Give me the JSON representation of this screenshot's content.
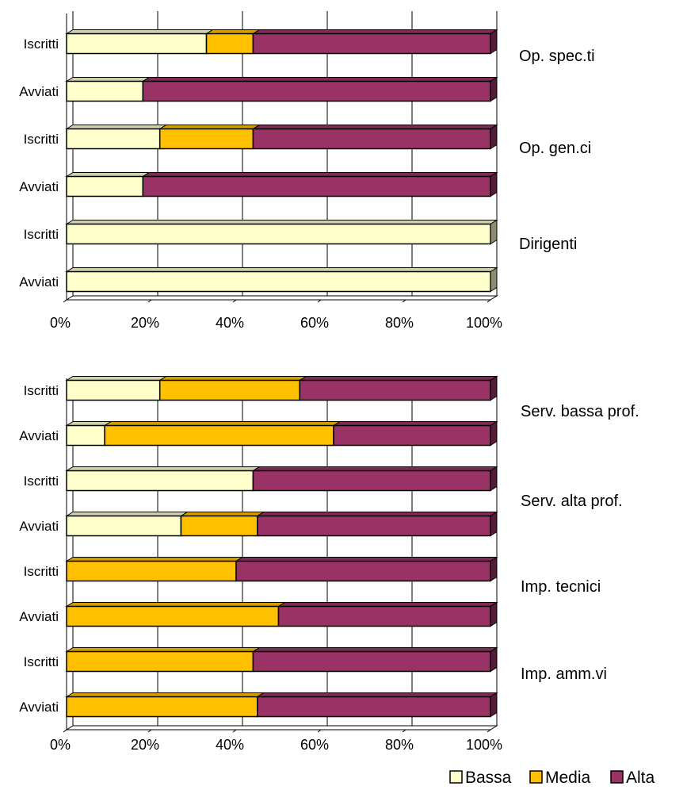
{
  "colors": {
    "Bassa": "#FFFFCC",
    "Media": "#FFC000",
    "Alta": "#993366"
  },
  "chart_data": [
    {
      "type": "bar",
      "orientation": "horizontal",
      "stacked": "percent",
      "x_tick_labels": [
        "0%",
        "20%",
        "40%",
        "60%",
        "80%",
        "100%"
      ],
      "xlim": [
        0,
        100
      ],
      "grid": "vertical",
      "categories": [
        "Iscritti",
        "Avviati",
        "Iscritti",
        "Avviati",
        "Iscritti",
        "Avviati"
      ],
      "groups": [
        "Op. spec.ti",
        "Op. gen.ci",
        "Dirigenti"
      ],
      "series": [
        {
          "name": "Bassa",
          "values": [
            33,
            18,
            22,
            18,
            100,
            100
          ]
        },
        {
          "name": "Media",
          "values": [
            11,
            0,
            22,
            0,
            0,
            0
          ]
        },
        {
          "name": "Alta",
          "values": [
            56,
            82,
            56,
            82,
            0,
            0
          ]
        }
      ]
    },
    {
      "type": "bar",
      "orientation": "horizontal",
      "stacked": "percent",
      "x_tick_labels": [
        "0%",
        "20%",
        "40%",
        "60%",
        "80%",
        "100%"
      ],
      "xlim": [
        0,
        100
      ],
      "grid": "vertical",
      "categories": [
        "Iscritti",
        "Avviati",
        "Iscritti",
        "Avviati",
        "Iscritti",
        "Avviati",
        "Iscritti",
        "Avviati"
      ],
      "groups": [
        "Serv. bassa prof.",
        "Serv. alta prof.",
        "Imp. tecnici",
        "Imp. amm.vi"
      ],
      "series": [
        {
          "name": "Bassa",
          "values": [
            22,
            9,
            44,
            27,
            0,
            0,
            0,
            0
          ]
        },
        {
          "name": "Media",
          "values": [
            33,
            54,
            0,
            18,
            40,
            50,
            44,
            45
          ]
        },
        {
          "name": "Alta",
          "values": [
            45,
            37,
            56,
            55,
            60,
            50,
            56,
            55
          ]
        }
      ]
    }
  ],
  "legend": {
    "position": "bottom-right",
    "items": [
      "Bassa",
      "Media",
      "Alta"
    ]
  }
}
